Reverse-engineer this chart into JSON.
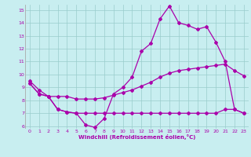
{
  "xlabel": "Windchill (Refroidissement éolien,°C)",
  "xlim": [
    -0.5,
    23.5
  ],
  "ylim": [
    5.8,
    15.4
  ],
  "yticks": [
    6,
    7,
    8,
    9,
    10,
    11,
    12,
    13,
    14,
    15
  ],
  "xticks": [
    0,
    1,
    2,
    3,
    4,
    5,
    6,
    7,
    8,
    9,
    10,
    11,
    12,
    13,
    14,
    15,
    16,
    17,
    18,
    19,
    20,
    21,
    22,
    23
  ],
  "bg_color": "#c8eef0",
  "line_color": "#aa00aa",
  "grid_color": "#99cccc",
  "line1_x": [
    0,
    1,
    2,
    3,
    4,
    5,
    6,
    7,
    8,
    9,
    10,
    11,
    12,
    13,
    14,
    15,
    16,
    17,
    18,
    19,
    20,
    21,
    22,
    23
  ],
  "line1_y": [
    9.5,
    8.8,
    8.3,
    7.3,
    7.1,
    7.0,
    6.1,
    5.9,
    6.6,
    8.5,
    9.0,
    9.8,
    11.8,
    12.4,
    14.3,
    15.3,
    14.0,
    13.8,
    13.5,
    13.7,
    12.5,
    11.0,
    7.3,
    7.0
  ],
  "line2_x": [
    0,
    1,
    2,
    3,
    4,
    5,
    6,
    7,
    8,
    9,
    10,
    11,
    12,
    13,
    14,
    15,
    16,
    17,
    18,
    19,
    20,
    21,
    22,
    23
  ],
  "line2_y": [
    9.3,
    8.5,
    8.3,
    8.3,
    8.3,
    8.1,
    8.1,
    8.1,
    8.2,
    8.4,
    8.6,
    8.8,
    9.1,
    9.4,
    9.8,
    10.1,
    10.3,
    10.4,
    10.5,
    10.6,
    10.7,
    10.8,
    10.3,
    9.9
  ],
  "line3_x": [
    0,
    1,
    2,
    3,
    4,
    5,
    6,
    7,
    8,
    9,
    10,
    11,
    12,
    13,
    14,
    15,
    16,
    17,
    18,
    19,
    20,
    21,
    22,
    23
  ],
  "line3_y": [
    9.3,
    8.5,
    8.3,
    7.3,
    7.1,
    7.0,
    7.0,
    7.0,
    7.0,
    7.0,
    7.0,
    7.0,
    7.0,
    7.0,
    7.0,
    7.0,
    7.0,
    7.0,
    7.0,
    7.0,
    7.0,
    7.3,
    7.3,
    7.0
  ]
}
